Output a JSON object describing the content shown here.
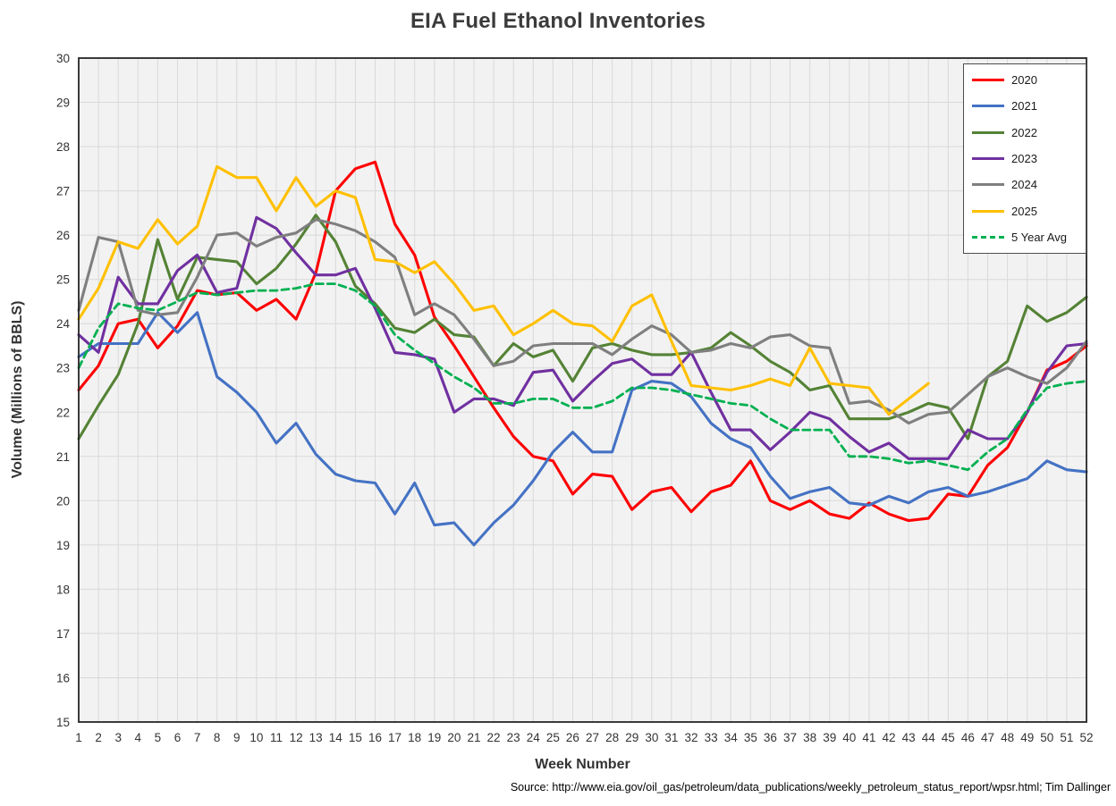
{
  "title": "EIA Fuel Ethanol Inventories",
  "axes": {
    "x_title": "Week Number",
    "y_title": "Volume (Millions of BBLS)"
  },
  "source_note": "Source: http://www.eia.gov/oil_gas/petroleum/data_publications/weekly_petroleum_status_report/wpsr.html; Tim Dallinger",
  "palette": {
    "plot_background": "#f2f2f2",
    "gridline": "#d9d9d9",
    "plot_border": "#262626",
    "tick_label": "#333333",
    "title_color": "#3b3b3b"
  },
  "chart_data": {
    "type": "line",
    "title": "EIA Fuel Ethanol Inventories",
    "xlabel": "Week Number",
    "ylabel": "Volume (Millions of BBLS)",
    "x": [
      1,
      2,
      3,
      4,
      5,
      6,
      7,
      8,
      9,
      10,
      11,
      12,
      13,
      14,
      15,
      16,
      17,
      18,
      19,
      20,
      21,
      22,
      23,
      24,
      25,
      26,
      27,
      28,
      29,
      30,
      31,
      32,
      33,
      34,
      35,
      36,
      37,
      38,
      39,
      40,
      41,
      42,
      43,
      44,
      45,
      46,
      47,
      48,
      49,
      50,
      51,
      52
    ],
    "ylim": [
      15,
      30
    ],
    "y_step": 1,
    "grid": true,
    "legend_position": "top-right",
    "series": [
      {
        "name": "2020",
        "color": "#ff0000",
        "style": "solid",
        "values": [
          22.5,
          23.05,
          24.0,
          24.1,
          23.45,
          23.95,
          24.75,
          24.65,
          24.7,
          24.3,
          24.55,
          24.1,
          25.15,
          27.0,
          27.5,
          27.65,
          26.25,
          25.55,
          24.15,
          23.5,
          22.8,
          22.1,
          21.45,
          21.0,
          20.9,
          20.15,
          20.6,
          20.55,
          19.8,
          20.2,
          20.3,
          19.75,
          20.2,
          20.35,
          20.9,
          20.0,
          19.8,
          20.0,
          19.7,
          19.6,
          19.95,
          19.7,
          19.55,
          19.6,
          20.15,
          20.1,
          20.8,
          21.2,
          22.0,
          22.95,
          23.15,
          23.5
        ]
      },
      {
        "name": "2021",
        "color": "#4472c4",
        "style": "solid",
        "values": [
          23.25,
          23.55,
          23.55,
          23.55,
          24.25,
          23.8,
          24.25,
          22.8,
          22.45,
          22.0,
          21.3,
          21.75,
          21.05,
          20.6,
          20.45,
          20.4,
          19.7,
          20.4,
          19.45,
          19.5,
          19.0,
          19.5,
          19.9,
          20.45,
          21.1,
          21.55,
          21.1,
          21.1,
          22.5,
          22.7,
          22.65,
          22.35,
          21.75,
          21.4,
          21.2,
          20.55,
          20.05,
          20.2,
          20.3,
          19.95,
          19.9,
          20.1,
          19.95,
          20.2,
          20.3,
          20.1,
          20.2,
          20.35,
          20.5,
          20.9,
          20.7,
          20.65
        ]
      },
      {
        "name": "2022",
        "color": "#548235",
        "style": "solid",
        "values": [
          21.4,
          22.15,
          22.85,
          24.0,
          25.9,
          24.55,
          25.5,
          25.45,
          25.4,
          24.9,
          25.25,
          25.8,
          26.45,
          25.85,
          24.85,
          24.45,
          23.9,
          23.8,
          24.1,
          23.75,
          23.7,
          23.05,
          23.55,
          23.25,
          23.4,
          22.7,
          23.45,
          23.55,
          23.4,
          23.3,
          23.3,
          23.35,
          23.45,
          23.8,
          23.5,
          23.15,
          22.9,
          22.5,
          22.6,
          21.85,
          21.85,
          21.85,
          22.0,
          22.2,
          22.1,
          21.4,
          22.8,
          23.15,
          24.4,
          24.05,
          24.25,
          24.6
        ]
      },
      {
        "name": "2023",
        "color": "#7030a0",
        "style": "solid",
        "values": [
          23.75,
          23.35,
          25.05,
          24.45,
          24.45,
          25.2,
          25.55,
          24.7,
          24.8,
          26.4,
          26.15,
          25.6,
          25.1,
          25.1,
          25.25,
          24.35,
          23.35,
          23.3,
          23.2,
          22.0,
          22.3,
          22.3,
          22.15,
          22.9,
          22.95,
          22.25,
          22.7,
          23.1,
          23.2,
          22.85,
          22.85,
          23.35,
          22.45,
          21.6,
          21.6,
          21.15,
          21.55,
          22.0,
          21.85,
          21.45,
          21.1,
          21.3,
          20.95,
          20.95,
          20.95,
          21.6,
          21.4,
          21.4,
          22.0,
          22.9,
          23.5,
          23.55
        ]
      },
      {
        "name": "2024",
        "color": "#7f7f7f",
        "style": "solid",
        "values": [
          24.3,
          25.95,
          25.85,
          24.3,
          24.2,
          24.25,
          25.05,
          26.0,
          26.05,
          25.75,
          25.95,
          26.05,
          26.35,
          26.25,
          26.1,
          25.85,
          25.5,
          24.2,
          24.45,
          24.2,
          23.65,
          23.05,
          23.15,
          23.5,
          23.55,
          23.55,
          23.55,
          23.3,
          23.65,
          23.95,
          23.75,
          23.35,
          23.4,
          23.55,
          23.45,
          23.7,
          23.75,
          23.5,
          23.45,
          22.2,
          22.25,
          22.05,
          21.75,
          21.95,
          22.0,
          22.4,
          22.8,
          23.0,
          22.8,
          22.65,
          23.0,
          23.6
        ]
      },
      {
        "name": "2025",
        "color": "#ffc000",
        "style": "solid",
        "values": [
          24.1,
          24.8,
          25.85,
          25.7,
          26.35,
          25.8,
          26.2,
          27.55,
          27.3,
          27.3,
          26.55,
          27.3,
          26.65,
          27.0,
          26.85,
          25.45,
          25.4,
          25.15,
          25.4,
          24.9,
          24.3,
          24.4,
          23.75,
          24.0,
          24.3,
          24.0,
          23.95,
          23.6,
          24.4,
          24.65,
          23.6,
          22.6,
          22.55,
          22.5,
          22.6,
          22.75,
          22.6,
          23.45,
          22.65,
          22.6,
          22.55,
          21.95,
          22.3,
          22.65
        ]
      },
      {
        "name": "5 Year Avg",
        "color": "#00b050",
        "style": "dashed",
        "values": [
          23.0,
          23.9,
          24.45,
          24.35,
          24.3,
          24.5,
          24.7,
          24.65,
          24.7,
          24.75,
          24.75,
          24.8,
          24.9,
          24.9,
          24.75,
          24.4,
          23.75,
          23.4,
          23.1,
          22.8,
          22.55,
          22.2,
          22.2,
          22.3,
          22.3,
          22.1,
          22.1,
          22.25,
          22.55,
          22.55,
          22.5,
          22.4,
          22.3,
          22.2,
          22.15,
          21.85,
          21.6,
          21.6,
          21.6,
          21.0,
          21.0,
          20.95,
          20.85,
          20.9,
          20.8,
          20.7,
          21.1,
          21.4,
          22.05,
          22.55,
          22.65,
          22.7
        ]
      }
    ]
  }
}
